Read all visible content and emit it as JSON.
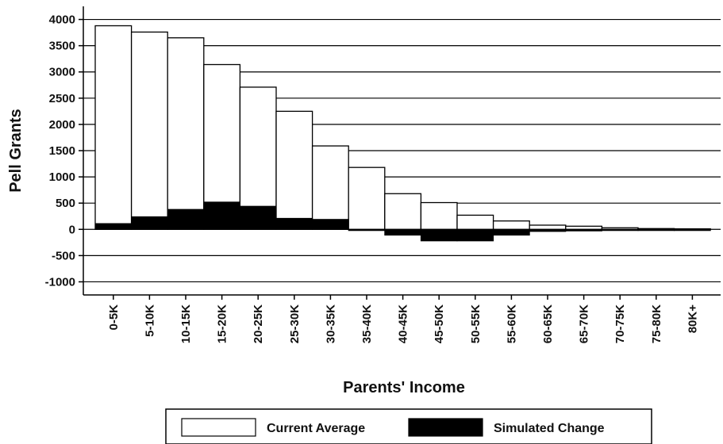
{
  "chart_data": {
    "type": "bar",
    "ylabel": "Pell Grants",
    "xlabel": "Parents' Income",
    "ylim": [
      -1250,
      4250
    ],
    "yticks": [
      4000,
      3500,
      3000,
      2500,
      2000,
      1500,
      1000,
      500,
      0,
      -500,
      -1000
    ],
    "grid": true,
    "categories": [
      "0-5K",
      "5-10K",
      "10-15K",
      "15-20K",
      "20-25K",
      "25-30K",
      "30-35K",
      "35-40K",
      "40-45K",
      "45-50K",
      "50-55K",
      "55-60K",
      "60-65K",
      "65-70K",
      "70-75K",
      "75-80K",
      "80K+"
    ],
    "series": [
      {
        "name": "Current Average",
        "color": "#ffffff",
        "values": [
          3880,
          3760,
          3650,
          3140,
          2710,
          2250,
          1590,
          1180,
          680,
          510,
          270,
          160,
          80,
          60,
          30,
          15,
          10
        ]
      },
      {
        "name": "Simulated Change",
        "color": "#000000",
        "values": [
          110,
          240,
          380,
          520,
          440,
          210,
          190,
          -20,
          -110,
          -220,
          -220,
          -110,
          -40,
          -30,
          -10,
          -5,
          -5
        ]
      }
    ],
    "legend_position": "bottom"
  }
}
